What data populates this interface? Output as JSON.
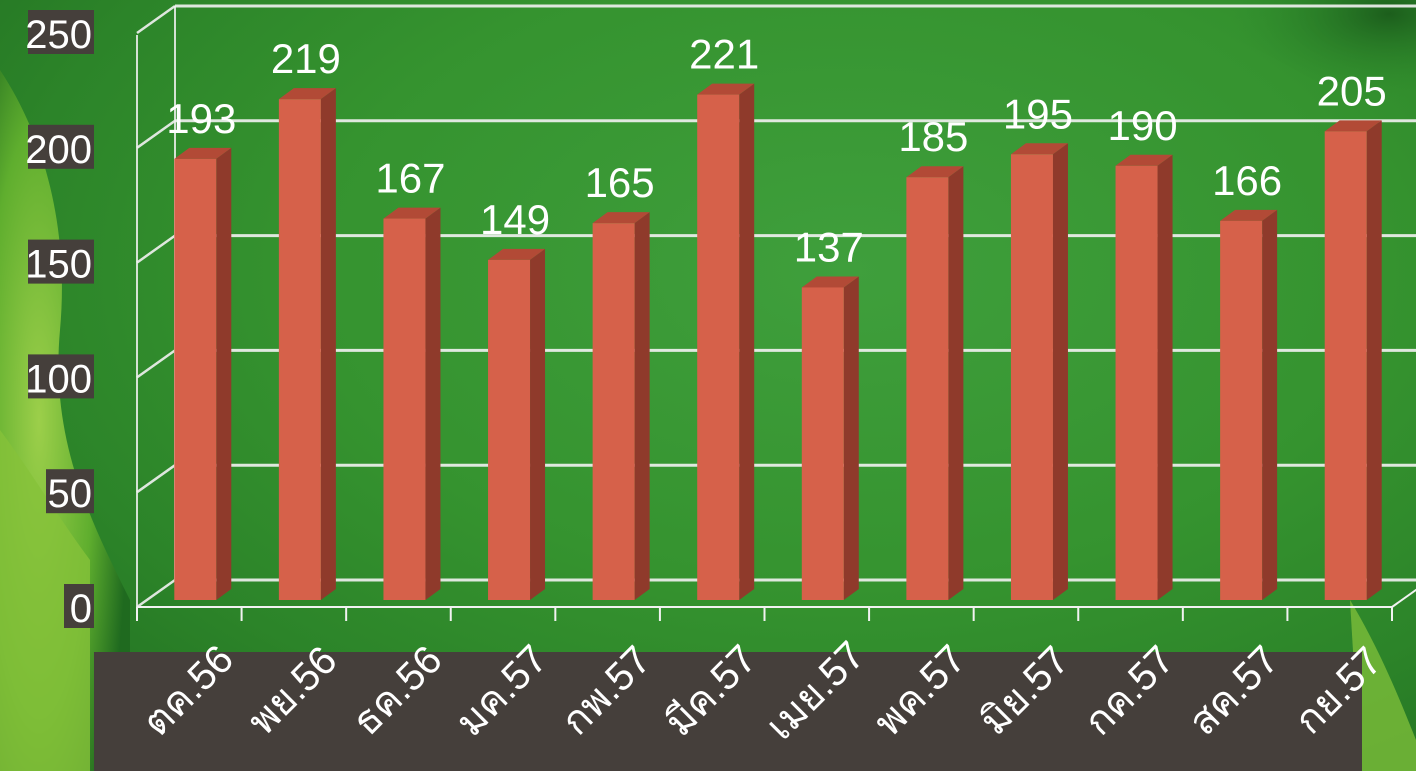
{
  "chart_data": {
    "type": "bar",
    "categories": [
      "ตค.56",
      "พย.56",
      "ธค.56",
      "มค.57",
      "กพ.57",
      "มีค.57",
      "เมย.57",
      "พค.57",
      "มิย.57",
      "กค.57",
      "สค.57",
      "กย.57"
    ],
    "values": [
      193,
      219,
      167,
      149,
      165,
      221,
      137,
      185,
      195,
      190,
      166,
      205
    ],
    "title": "",
    "xlabel": "",
    "ylabel": "",
    "ylim": [
      0,
      250
    ],
    "yticks": [
      0,
      50,
      100,
      150,
      200,
      250
    ],
    "grid": true,
    "bar_style": "3d",
    "data_labels": true
  },
  "colors": {
    "bar_front": "#d6614a",
    "bar_side": "#8f3a2b",
    "bar_top": "#b24a36",
    "gridline": "#f2f2f2",
    "tick_label_bg": "#453f3b",
    "background": "#35932f"
  }
}
